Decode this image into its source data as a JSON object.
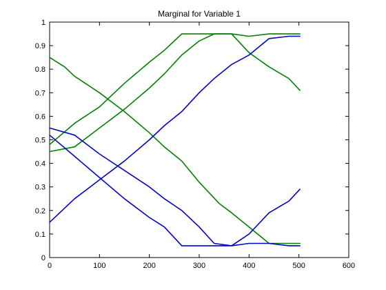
{
  "chart_data": {
    "type": "line",
    "title": "Marginal for Variable 1",
    "xlabel": "",
    "ylabel": "",
    "xlim": [
      0,
      600
    ],
    "ylim": [
      0,
      1
    ],
    "x_ticks": [
      0,
      100,
      200,
      300,
      400,
      500,
      600
    ],
    "y_ticks": [
      0,
      0.1,
      0.2,
      0.3,
      0.4,
      0.5,
      0.6,
      0.7,
      0.8,
      0.9,
      1
    ],
    "grid": false,
    "legend": "none",
    "colors": {
      "green": "#008000",
      "blue": "#0000cc"
    },
    "series": [
      {
        "color": "green",
        "x": [
          0,
          30,
          50,
          100,
          150,
          200,
          230,
          265,
          300,
          340,
          365,
          400,
          440,
          480,
          502
        ],
        "y": [
          0.85,
          0.81,
          0.77,
          0.7,
          0.62,
          0.53,
          0.47,
          0.41,
          0.32,
          0.23,
          0.19,
          0.13,
          0.06,
          0.06,
          0.06
        ]
      },
      {
        "color": "green",
        "x": [
          0,
          50,
          100,
          150,
          200,
          230,
          265,
          300,
          330,
          365,
          400,
          440,
          480,
          502
        ],
        "y": [
          0.45,
          0.47,
          0.55,
          0.63,
          0.72,
          0.78,
          0.86,
          0.92,
          0.95,
          0.95,
          0.94,
          0.95,
          0.95,
          0.95
        ]
      },
      {
        "color": "green",
        "x": [
          0,
          50,
          100,
          150,
          200,
          230,
          265,
          300,
          330,
          365,
          400,
          440,
          480,
          502
        ],
        "y": [
          0.48,
          0.57,
          0.64,
          0.74,
          0.83,
          0.88,
          0.95,
          0.95,
          0.95,
          0.95,
          0.87,
          0.81,
          0.76,
          0.71
        ]
      },
      {
        "color": "blue",
        "x": [
          0,
          50,
          100,
          150,
          200,
          230,
          265,
          300,
          330,
          365,
          400,
          440,
          480,
          502
        ],
        "y": [
          0.15,
          0.25,
          0.33,
          0.41,
          0.5,
          0.56,
          0.62,
          0.7,
          0.76,
          0.82,
          0.86,
          0.93,
          0.94,
          0.94
        ]
      },
      {
        "color": "blue",
        "x": [
          0,
          50,
          100,
          150,
          200,
          230,
          265,
          300,
          330,
          365,
          400,
          440,
          480,
          502
        ],
        "y": [
          0.55,
          0.52,
          0.44,
          0.37,
          0.3,
          0.25,
          0.2,
          0.13,
          0.06,
          0.05,
          0.06,
          0.06,
          0.05,
          0.05
        ]
      },
      {
        "color": "blue",
        "x": [
          0,
          50,
          100,
          150,
          200,
          230,
          265,
          300,
          330,
          365,
          400,
          440,
          480,
          502
        ],
        "y": [
          0.52,
          0.43,
          0.34,
          0.25,
          0.17,
          0.13,
          0.05,
          0.05,
          0.05,
          0.05,
          0.1,
          0.19,
          0.24,
          0.29
        ]
      }
    ]
  }
}
